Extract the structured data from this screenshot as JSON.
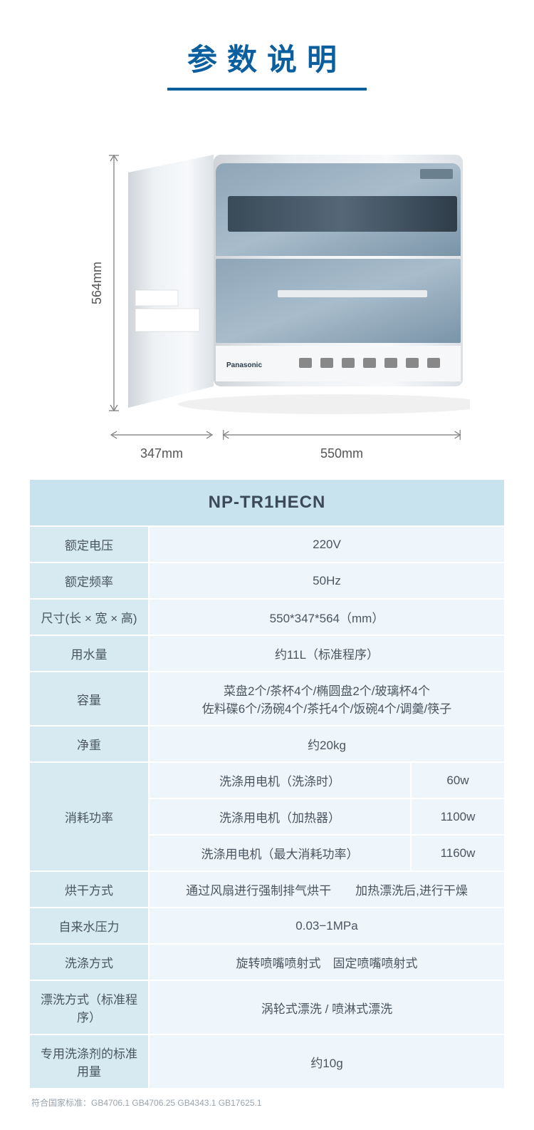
{
  "title": "参数说明",
  "dims": {
    "h": "564mm",
    "d": "347mm",
    "w": "550mm"
  },
  "model": "NP-TR1HECN",
  "rows": [
    {
      "label": "额定电压",
      "val": "220V"
    },
    {
      "label": "额定频率",
      "val": "50Hz"
    },
    {
      "label": "尺寸(长 × 宽 × 高)",
      "val": "550*347*564（mm）"
    },
    {
      "label": "用水量",
      "val": "约11L（标准程序）"
    },
    {
      "label": "容量",
      "val": "菜盘2个/茶杯4个/椭圆盘2个/玻璃杯4个\n佐料碟6个/汤碗4个/茶托4个/饭碗4个/调羹/筷子"
    },
    {
      "label": "净重",
      "val": "约20kg"
    },
    {
      "label": "消耗功率",
      "subs": [
        {
          "l": "洗涤用电机（洗涤时）",
          "v": "60w"
        },
        {
          "l": "洗涤用电机（加热器）",
          "v": "1100w"
        },
        {
          "l": "洗涤用电机（最大消耗功率）",
          "v": "1160w"
        }
      ]
    },
    {
      "label": "烘干方式",
      "val": "通过风扇进行强制排气烘干  加热漂洗后,进行干燥"
    },
    {
      "label": "自来水压力",
      "val": "0.03−1MPa"
    },
    {
      "label": "洗涤方式",
      "val": "旋转喷嘴喷射式 固定喷嘴喷射式"
    },
    {
      "label": "漂洗方式（标准程序）",
      "val": "涡轮式漂洗 / 喷淋式漂洗"
    },
    {
      "label": "专用洗涤剂的标准用量",
      "val": "约10g"
    }
  ],
  "footnote": "符合国家标准：GB4706.1 GB4706.25 GB4343.1 GB17625.1",
  "colors": {
    "title": "#0b5f9e",
    "th_bg": "#c8e3ee",
    "label_bg": "#d7eaf2",
    "val_bg": "#eef6fb",
    "text": "#4a5560"
  }
}
